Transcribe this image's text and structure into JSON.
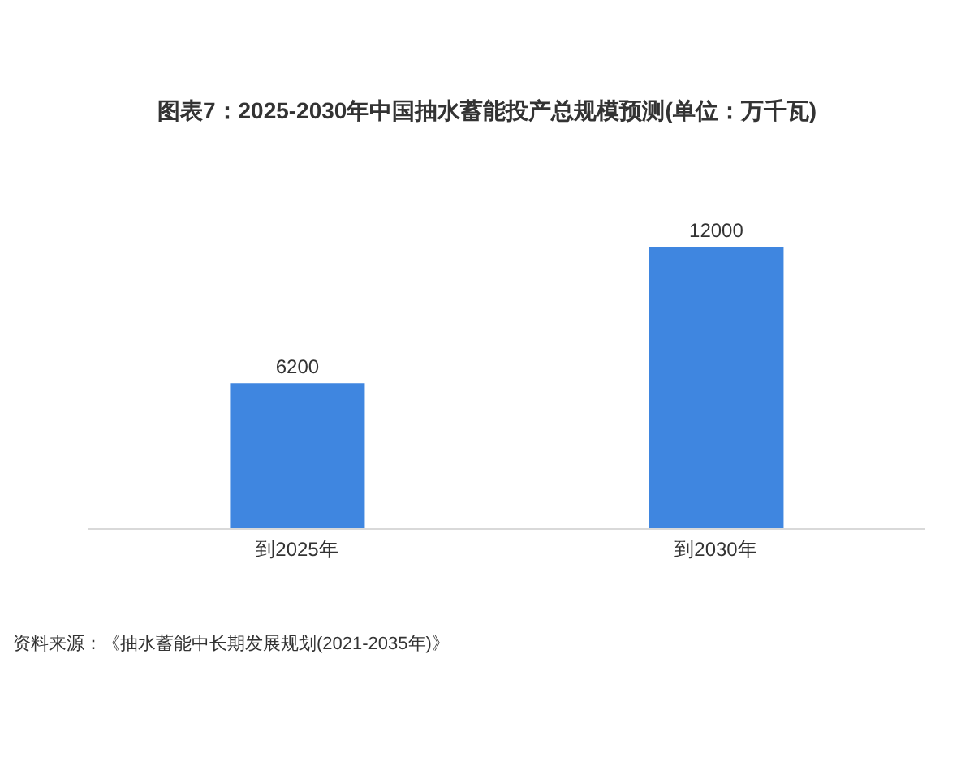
{
  "chart_data": {
    "type": "bar",
    "title": "图表7：2025-2030年中国抽水蓄能投产总规模预测(单位：万千瓦)",
    "categories": [
      "到2025年",
      "到2030年"
    ],
    "values": [
      6200,
      12000
    ],
    "color": "#3f86e0",
    "data_labels": true,
    "annotations": [
      "资料来源：《抽水蓄能中长期发展规划(2021-2035年)》"
    ]
  }
}
